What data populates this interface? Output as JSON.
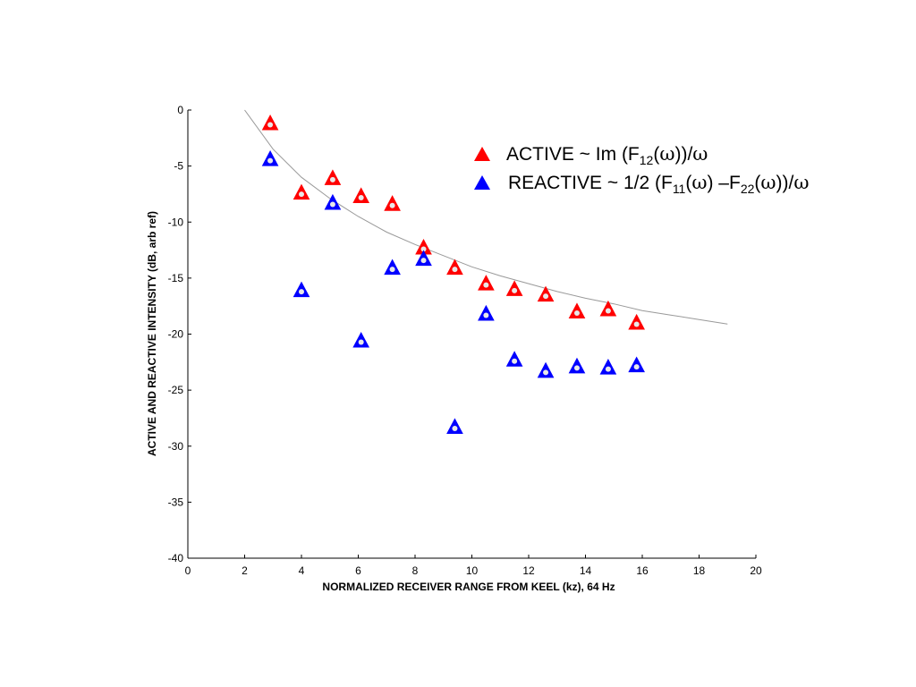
{
  "chart_data": {
    "type": "scatter",
    "xlabel": "NORMALIZED RECEIVER RANGE FROM KEEL (kz), 64 Hz",
    "ylabel": "ACTIVE AND REACTIVE INTENSITY (dB, arb ref)",
    "xlim": [
      0,
      20
    ],
    "ylim": [
      -40,
      0
    ],
    "x_ticks": [
      0,
      2,
      4,
      6,
      8,
      10,
      12,
      14,
      16,
      18,
      20
    ],
    "y_ticks": [
      0,
      -5,
      -10,
      -15,
      -20,
      -25,
      -30,
      -35,
      -40
    ],
    "grid": false,
    "legend_position": "top-right",
    "series": [
      {
        "name": "ACTIVE ~ Im (F12(ω))/ω",
        "legend": {
          "main": "ACTIVE ~ Im (F",
          "sub1": "12",
          "mid1": "(",
          "omega1": "ω",
          "mid2": "))/",
          "omega2": "ω"
        },
        "color": "#ff0000",
        "marker": "triangle",
        "x": [
          2.9,
          4.0,
          5.1,
          6.1,
          7.2,
          8.3,
          9.4,
          10.5,
          11.5,
          12.6,
          13.7,
          14.8,
          15.8
        ],
        "y": [
          -1.2,
          -7.4,
          -6.1,
          -7.7,
          -8.4,
          -12.3,
          -14.1,
          -15.5,
          -16.0,
          -16.5,
          -18.0,
          -17.8,
          -19.0
        ]
      },
      {
        "name": "REACTIVE ~ 1/2 (F11(ω) –F22(ω))/ω",
        "legend": {
          "main": "REACTIVE ~ 1/2 (F",
          "sub1": "11",
          "mid1": "(",
          "omega1": "ω",
          "mid2": ") –F",
          "sub2": "22",
          "mid3": "(",
          "omega2": "ω",
          "mid4": "))/",
          "omega3": "ω"
        },
        "color": "#0000ff",
        "marker": "triangle",
        "x": [
          2.9,
          4.0,
          5.1,
          6.1,
          7.2,
          8.3,
          9.4,
          10.5,
          11.5,
          12.6,
          13.7,
          14.8,
          15.8
        ],
        "y": [
          -4.4,
          -16.1,
          -8.3,
          -20.6,
          -14.1,
          -13.3,
          -28.3,
          -18.2,
          -22.3,
          -23.3,
          -22.9,
          -23.0,
          -22.8
        ]
      }
    ],
    "fit_curve": {
      "color": "#999999",
      "x": [
        2.0,
        3.0,
        4.0,
        5.0,
        6.0,
        7.0,
        8.0,
        9.0,
        10.0,
        11.0,
        12.0,
        13.0,
        14.0,
        15.0,
        16.0,
        17.0,
        18.0,
        19.0
      ],
      "y": [
        0.0,
        -3.5,
        -6.0,
        -7.9,
        -9.5,
        -10.9,
        -12.0,
        -13.0,
        -14.0,
        -14.8,
        -15.5,
        -16.2,
        -16.8,
        -17.3,
        -17.9,
        -18.3,
        -18.7,
        -19.1
      ]
    }
  }
}
